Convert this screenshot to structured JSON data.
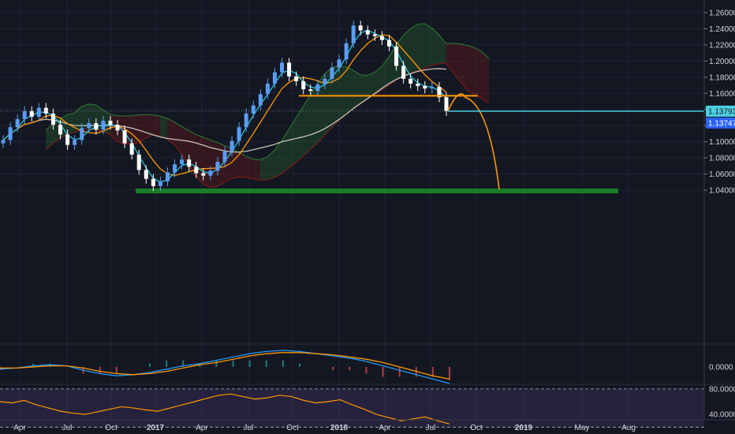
{
  "chart_data": {
    "type": "line",
    "instrument_timeframe": "weekly",
    "x_ticks": [
      "Apr",
      "Jul",
      "Oct",
      "2017",
      "Apr",
      "Jul",
      "Oct",
      "2018",
      "Apr",
      "Jul",
      "Oct",
      "2019",
      "May",
      "Aug"
    ],
    "main_panel": {
      "y_ticks": [
        "1.26000",
        "1.24000",
        "1.22000",
        "1.20000",
        "1.18000",
        "1.16000",
        "1.14000",
        "1.12000",
        "1.10000",
        "1.08000",
        "1.06000",
        "1.04000"
      ],
      "ylim": [
        1.032,
        1.264
      ],
      "last_price_label": "1.13793",
      "last_price": 1.13793,
      "secondary_price_label": "1.13747",
      "secondary_price": 1.13747,
      "series": [
        {
          "kind": "candles",
          "up_color": "#5b9cf6",
          "down_color": "#ffffff"
        },
        {
          "kind": "moving_average",
          "color": "#26c6da"
        },
        {
          "kind": "moving_average",
          "color": "#ff9800"
        },
        {
          "kind": "moving_average",
          "color": "#c9c2b5"
        },
        {
          "kind": "ichimoku_cloud",
          "bull_color": "#2e7d32",
          "bear_color": "#8b1a1a"
        }
      ],
      "close_values": [
        1.102,
        1.118,
        1.128,
        1.138,
        1.131,
        1.142,
        1.135,
        1.121,
        1.109,
        1.096,
        1.102,
        1.117,
        1.123,
        1.115,
        1.126,
        1.121,
        1.114,
        1.098,
        1.084,
        1.065,
        1.054,
        1.045,
        1.051,
        1.062,
        1.072,
        1.078,
        1.069,
        1.061,
        1.058,
        1.064,
        1.075,
        1.088,
        1.101,
        1.118,
        1.135,
        1.145,
        1.159,
        1.172,
        1.186,
        1.198,
        1.181,
        1.175,
        1.165,
        1.163,
        1.171,
        1.178,
        1.192,
        1.202,
        1.222,
        1.244,
        1.238,
        1.233,
        1.231,
        1.226,
        1.218,
        1.194,
        1.178,
        1.172,
        1.169,
        1.166,
        1.168,
        1.155,
        1.138
      ],
      "annotations": {
        "support_zone": {
          "from": 1.036,
          "to": 1.042,
          "color": "#1b8e2a"
        },
        "neckline": {
          "value": 1.157,
          "color": "#ff9800"
        },
        "projection_path": {
          "peak": 1.155,
          "end": 1.041,
          "color": "#ff9800"
        },
        "price_line": {
          "value": 1.13793,
          "color": "#4dd0e1"
        }
      }
    },
    "macd_panel": {
      "y_ticks": [
        "0.0000"
      ],
      "macd": [
        -0.0002,
        -0.0001,
        0.0001,
        0.0002,
        0.0001,
        -0.0003,
        -0.0006,
        -0.0008,
        -0.0007,
        -0.0005,
        -0.0002,
        0.0001,
        0.0003,
        0.0006,
        0.0009,
        0.0012,
        0.0014,
        0.0015,
        0.0014,
        0.0012,
        0.001,
        0.0008,
        0.0005,
        0.0001,
        -0.0003,
        -0.0007,
        -0.0011,
        -0.0015
      ],
      "signal": [
        -0.0001,
        -0.0001,
        0.0,
        0.0001,
        0.0001,
        -0.0001,
        -0.0004,
        -0.0006,
        -0.0007,
        -0.0006,
        -0.0004,
        -0.0001,
        0.0002,
        0.0004,
        0.0007,
        0.001,
        0.0012,
        0.0013,
        0.0013,
        0.0012,
        0.0011,
        0.0009,
        0.0007,
        0.0004,
        0.0,
        -0.0004,
        -0.0008,
        -0.0011
      ]
    },
    "rsi_panel": {
      "y_ticks": [
        "80.0000",
        "40.0000"
      ],
      "bands": [
        80,
        20
      ],
      "values": [
        60,
        58,
        62,
        55,
        50,
        45,
        42,
        40,
        44,
        48,
        52,
        50,
        47,
        45,
        50,
        55,
        60,
        65,
        70,
        72,
        68,
        64,
        66,
        70,
        68,
        62,
        58,
        60,
        63,
        55,
        48,
        40,
        35,
        30,
        33,
        36,
        30,
        25
      ]
    }
  }
}
